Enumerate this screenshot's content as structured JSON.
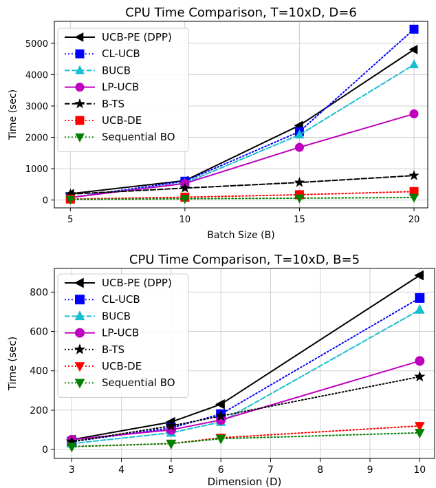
{
  "chart_data": [
    {
      "type": "line",
      "title": "CPU Time Comparison, T=10xD, D=6",
      "xlabel": "Batch Size (B)",
      "ylabel": "Time (sec)",
      "x": [
        5,
        10,
        15,
        20
      ],
      "xticks": [
        "5",
        "10",
        "15",
        "20"
      ],
      "yticks": [
        "0",
        "1000",
        "2000",
        "3000",
        "4000",
        "5000"
      ],
      "xlim": [
        4.3,
        20.6
      ],
      "ylim": [
        -250,
        5700
      ],
      "grid": true,
      "legend": "top-left",
      "series": [
        {
          "name": "UCB-PE (DPP)",
          "values": [
            200,
            620,
            2380,
            4800
          ],
          "color": "#000000",
          "dash": "solid",
          "marker": "triangle-left"
        },
        {
          "name": "CL-UCB",
          "values": [
            80,
            600,
            2180,
            5450
          ],
          "color": "#0000ff",
          "dash": "dotted",
          "marker": "square"
        },
        {
          "name": "BUCB",
          "values": [
            80,
            540,
            2080,
            4320
          ],
          "color": "#17becf",
          "dash": "dashed",
          "marker": "triangle-up"
        },
        {
          "name": "LP-UCB",
          "values": [
            80,
            530,
            1680,
            2750
          ],
          "color": "#bf00bf",
          "dash": "solid",
          "marker": "circle"
        },
        {
          "name": "B-TS",
          "values": [
            190,
            380,
            560,
            780
          ],
          "color": "#000000",
          "dash": "dashed",
          "marker": "star"
        },
        {
          "name": "UCB-DE",
          "values": [
            30,
            90,
            170,
            270
          ],
          "color": "#ff0000",
          "dash": "dotted",
          "marker": "square"
        },
        {
          "name": "Sequential BO",
          "values": [
            20,
            40,
            60,
            80
          ],
          "color": "#008000",
          "dash": "dotted",
          "marker": "triangle-down"
        }
      ]
    },
    {
      "type": "line",
      "title": "CPU Time Comparison, T=10xD, B=5",
      "xlabel": "Dimension (D)",
      "ylabel": "Time (sec)",
      "x": [
        3,
        5,
        6,
        10
      ],
      "xticks": [
        "3",
        "4",
        "5",
        "6",
        "7",
        "8",
        "9",
        "10"
      ],
      "yticks": [
        "0",
        "200",
        "400",
        "600",
        "800"
      ],
      "xlim": [
        2.65,
        10.3
      ],
      "ylim": [
        -45,
        920
      ],
      "grid": true,
      "legend": "top-left",
      "series": [
        {
          "name": "UCB-PE (DPP)",
          "values": [
            50,
            140,
            230,
            885
          ],
          "color": "#000000",
          "dash": "solid",
          "marker": "triangle-left"
        },
        {
          "name": "CL-UCB",
          "values": [
            40,
            110,
            180,
            770
          ],
          "color": "#0000ff",
          "dash": "dotted",
          "marker": "square"
        },
        {
          "name": "BUCB",
          "values": [
            30,
            85,
            140,
            710
          ],
          "color": "#17becf",
          "dash": "dashed",
          "marker": "triangle-up"
        },
        {
          "name": "LP-UCB",
          "values": [
            50,
            100,
            150,
            450
          ],
          "color": "#bf00bf",
          "dash": "solid",
          "marker": "circle"
        },
        {
          "name": "B-TS",
          "values": [
            40,
            120,
            170,
            370
          ],
          "color": "#000000",
          "dash": "dotted",
          "marker": "star"
        },
        {
          "name": "UCB-DE",
          "values": [
            15,
            30,
            60,
            120
          ],
          "color": "#ff0000",
          "dash": "dotted",
          "marker": "triangle-down"
        },
        {
          "name": "Sequential BO",
          "values": [
            15,
            30,
            55,
            85
          ],
          "color": "#008000",
          "dash": "dotted",
          "marker": "triangle-down"
        }
      ]
    }
  ]
}
